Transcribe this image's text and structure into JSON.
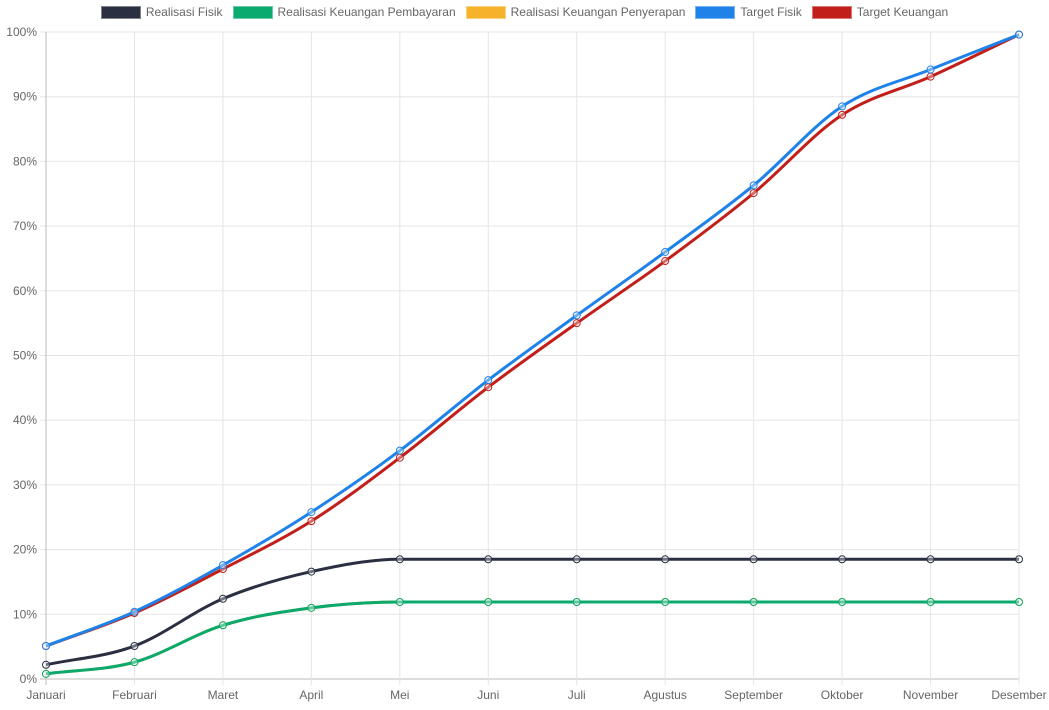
{
  "chart_data": {
    "type": "line",
    "title": "",
    "xlabel": "",
    "ylabel": "",
    "categories": [
      "Januari",
      "Februari",
      "Maret",
      "April",
      "Mei",
      "Juni",
      "Juli",
      "Agustus",
      "September",
      "Oktober",
      "November",
      "Desember"
    ],
    "ylim": [
      0,
      100
    ],
    "yticks": [
      "0%",
      "10%",
      "20%",
      "30%",
      "40%",
      "50%",
      "60%",
      "70%",
      "80%",
      "90%",
      "100%"
    ],
    "grid": true,
    "legend_position": "top",
    "series": [
      {
        "name": "Realisasi Fisik",
        "color": "#2a3042",
        "values": [
          2.2,
          5.1,
          12.4,
          16.6,
          18.5,
          18.5,
          18.5,
          18.5,
          18.5,
          18.5,
          18.5,
          18.5
        ]
      },
      {
        "name": "Realisasi Keuangan Pembayaran",
        "color": "#0aa96e",
        "values": [
          0.8,
          2.6,
          8.3,
          11.0,
          11.9,
          11.9,
          11.9,
          11.9,
          11.9,
          11.9,
          11.9,
          11.9
        ]
      },
      {
        "name": "Realisasi Keuangan Penyerapan",
        "color": "#f6b22a",
        "values": [
          0.8,
          2.6,
          8.3,
          11.0,
          11.9,
          11.9,
          11.9,
          11.9,
          11.9,
          11.9,
          11.9,
          11.9
        ]
      },
      {
        "name": "Target Fisik",
        "color": "#1e82e8",
        "values": [
          5.1,
          10.4,
          17.6,
          25.8,
          35.3,
          46.2,
          56.2,
          66.0,
          76.3,
          88.5,
          94.2,
          99.6
        ]
      },
      {
        "name": "Target Keuangan",
        "color": "#c21f1a",
        "values": [
          5.1,
          10.2,
          17.0,
          24.4,
          34.2,
          45.1,
          55.0,
          64.6,
          75.1,
          87.2,
          93.1,
          99.6
        ]
      }
    ]
  }
}
